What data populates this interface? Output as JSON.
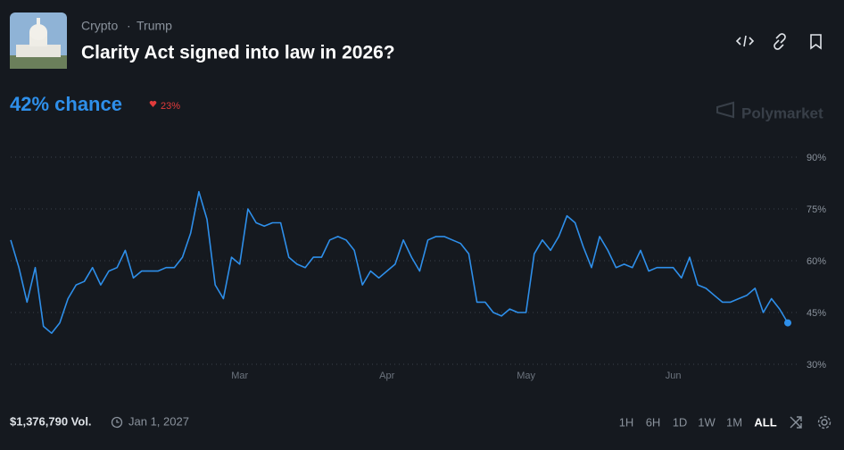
{
  "header": {
    "breadcrumb": [
      "Crypto",
      "Trump"
    ],
    "title": "Clarity Act signed into law in 2026?"
  },
  "summary": {
    "chance": "42% chance",
    "change": "23%"
  },
  "brand": "Polymarket",
  "chart_data": {
    "type": "line",
    "color": "#2e8fea",
    "categories": [
      null,
      null,
      null,
      null,
      null,
      null,
      null,
      null,
      null,
      null,
      null,
      null,
      null,
      null,
      null,
      null,
      null,
      null,
      null,
      null,
      null,
      null,
      null,
      null,
      null,
      null,
      null,
      null,
      "Mar",
      null,
      null,
      null,
      null,
      null,
      null,
      null,
      null,
      null,
      null,
      null,
      null,
      null,
      null,
      null,
      null,
      null,
      "Apr",
      null,
      null,
      null,
      null,
      null,
      null,
      null,
      null,
      null,
      null,
      null,
      null,
      null,
      null,
      null,
      null,
      "May",
      null,
      null,
      null,
      null,
      null,
      null,
      null,
      null,
      null,
      null,
      null,
      null,
      null,
      null,
      null,
      null,
      null,
      "Jun",
      null,
      null,
      null,
      null,
      null,
      null,
      null,
      null,
      null,
      null,
      null,
      null,
      null,
      null
    ],
    "values": [
      66,
      58,
      48,
      58,
      41,
      39,
      42,
      49,
      53,
      54,
      58,
      53,
      57,
      58,
      63,
      55,
      57,
      57,
      57,
      58,
      58,
      61,
      68,
      80,
      72,
      53,
      49,
      61,
      59,
      75,
      71,
      70,
      71,
      71,
      61,
      59,
      58,
      61,
      61,
      66,
      67,
      66,
      63,
      53,
      57,
      55,
      57,
      59,
      66,
      61,
      57,
      66,
      67,
      67,
      66,
      65,
      62,
      48,
      48,
      45,
      44,
      46,
      45,
      45,
      62,
      66,
      63,
      67,
      73,
      71,
      64,
      58,
      67,
      63,
      58,
      59,
      58,
      63,
      57,
      58,
      58,
      58,
      55,
      61,
      53,
      52,
      50,
      48,
      48,
      49,
      50,
      52,
      45,
      49,
      46,
      42
    ],
    "ylim": [
      30,
      90
    ],
    "yticks": [
      {
        "value": 30,
        "label": "30%"
      },
      {
        "value": 45,
        "label": "45%"
      },
      {
        "value": 60,
        "label": "60%"
      },
      {
        "value": 75,
        "label": "75%"
      },
      {
        "value": 90,
        "label": "90%"
      }
    ],
    "grid": true
  },
  "footer": {
    "volume": "$1,376,790 Vol.",
    "end_date": "Jan 1, 2027",
    "ranges": [
      "1H",
      "6H",
      "1D",
      "1W",
      "1M",
      "ALL"
    ],
    "active_range": "ALL"
  }
}
